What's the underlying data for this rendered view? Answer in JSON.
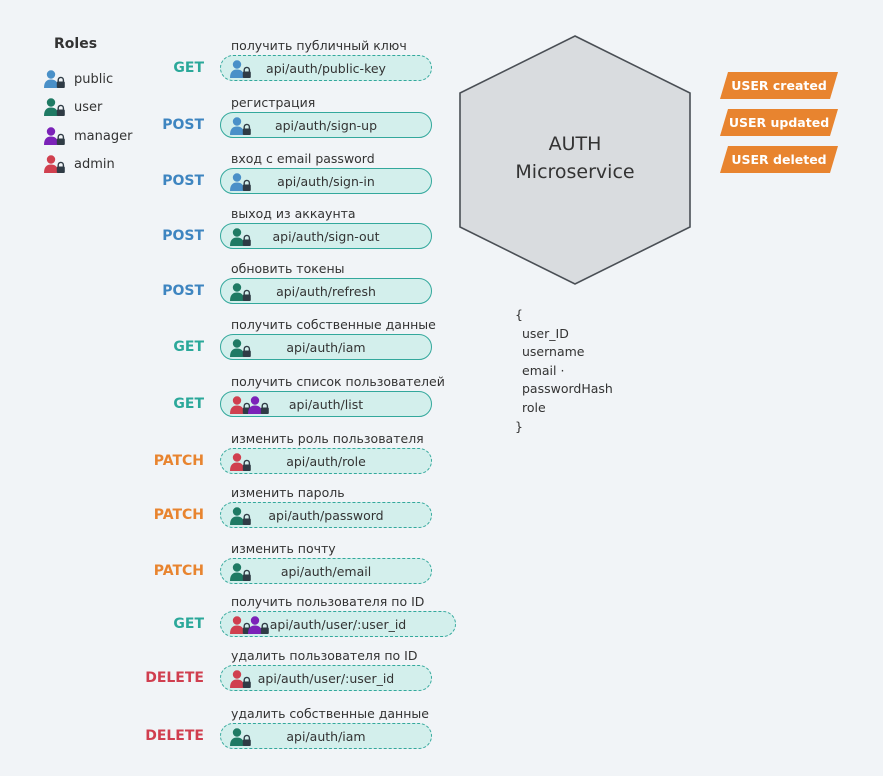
{
  "colors": {
    "public": "#4a90c8",
    "user": "#1f7a64",
    "manager": "#7b22b8",
    "admin": "#d0404f",
    "GET": "#2ba89a",
    "POST": "#3e85c0",
    "PATCH": "#e8842f",
    "DELETE": "#d03e4f",
    "pill_border": "#33a89c",
    "pill_fill": "#d3efec",
    "event_fill": "#e8842f",
    "hexagon_fill": "#d9dcdf",
    "hexagon_stroke": "#4a4f55"
  },
  "legend": {
    "title": "Roles",
    "items": [
      {
        "role": "public",
        "label": "public"
      },
      {
        "role": "user",
        "label": "user"
      },
      {
        "role": "manager",
        "label": "manager"
      },
      {
        "role": "admin",
        "label": "admin"
      }
    ]
  },
  "endpoints": [
    {
      "title": "получить публичный ключ",
      "method": "GET",
      "path": "api/auth/public-key",
      "roles": [
        "public"
      ],
      "dashed": true
    },
    {
      "title": "регистрация",
      "method": "POST",
      "path": "api/auth/sign-up",
      "roles": [
        "public"
      ],
      "dashed": false
    },
    {
      "title": "вход с email password",
      "method": "POST",
      "path": "api/auth/sign-in",
      "roles": [
        "public"
      ],
      "dashed": false
    },
    {
      "title": "выход из аккаунта",
      "method": "POST",
      "path": "api/auth/sign-out",
      "roles": [
        "user"
      ],
      "dashed": false
    },
    {
      "title": "обновить токены",
      "method": "POST",
      "path": "api/auth/refresh",
      "roles": [
        "user"
      ],
      "dashed": false
    },
    {
      "title": "получить собственные данные",
      "method": "GET",
      "path": "api/auth/iam",
      "roles": [
        "user"
      ],
      "dashed": false
    },
    {
      "title": "получить список пользователей",
      "method": "GET",
      "path": "api/auth/list",
      "roles": [
        "admin",
        "manager"
      ],
      "dashed": false
    },
    {
      "title": "изменить роль пользователя",
      "method": "PATCH",
      "path": "api/auth/role",
      "roles": [
        "admin"
      ],
      "dashed": true
    },
    {
      "title": "изменить пароль",
      "method": "PATCH",
      "path": "api/auth/password",
      "roles": [
        "user"
      ],
      "dashed": true
    },
    {
      "title": "изменить почту",
      "method": "PATCH",
      "path": "api/auth/email",
      "roles": [
        "user"
      ],
      "dashed": true
    },
    {
      "title": "получить пользователя по ID",
      "method": "GET",
      "path": "api/auth/user/:user_id",
      "roles": [
        "admin",
        "manager"
      ],
      "dashed": true
    },
    {
      "title": "удалить пользователя по ID",
      "method": "DELETE",
      "path": "api/auth/user/:user_id",
      "roles": [
        "admin"
      ],
      "dashed": true
    },
    {
      "title": "удалить собственные данные",
      "method": "DELETE",
      "path": "api/auth/iam",
      "roles": [
        "user"
      ],
      "dashed": true
    }
  ],
  "service": {
    "line1": "AUTH",
    "line2": "Microservice"
  },
  "schema": {
    "open": "{",
    "fields": [
      "user_ID",
      "username",
      "email  ·",
      "passwordHash",
      "role"
    ],
    "close": "}"
  },
  "events": [
    "USER created",
    "USER updated",
    "USER deleted"
  ]
}
